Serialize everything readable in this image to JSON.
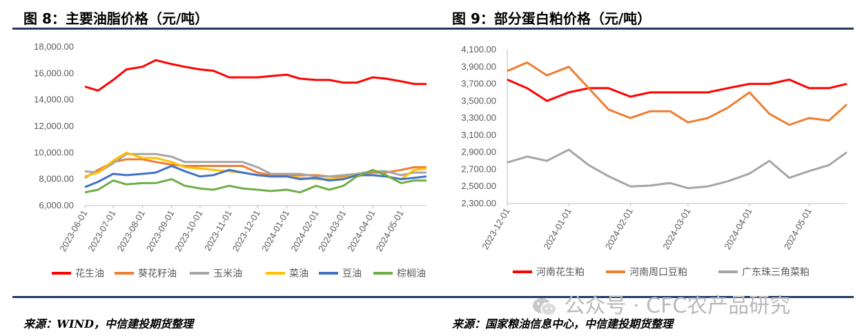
{
  "left": {
    "title": "图 8：主要油脂价格（元/吨）",
    "source": "来源：WIND，中信建投期货整理"
  },
  "right": {
    "title": "图 9：部分蛋白粕价格（元/吨）",
    "source": "来源：国家粮油信息中心，中信建投期货整理"
  },
  "watermark": "公众号 · CFC农产品研究",
  "chart_data": [
    {
      "type": "line",
      "title": "图 8：主要油脂价格（元/吨）",
      "x": [
        "2023-06-01",
        "2023-06-15",
        "2023-07-01",
        "2023-07-15",
        "2023-08-01",
        "2023-08-15",
        "2023-09-01",
        "2023-09-15",
        "2023-10-01",
        "2023-10-15",
        "2023-11-01",
        "2023-11-15",
        "2023-12-01",
        "2023-12-15",
        "2024-01-01",
        "2024-01-15",
        "2024-02-01",
        "2024-02-15",
        "2024-03-01",
        "2024-03-15",
        "2024-04-01",
        "2024-04-15",
        "2024-05-01",
        "2024-05-15",
        "2024-05-28"
      ],
      "x_ticks": [
        "2023-06-01",
        "2023-07-01",
        "2023-08-01",
        "2023-09-01",
        "2023-10-01",
        "2023-11-01",
        "2023-12-01",
        "2024-01-01",
        "2024-02-01",
        "2024-03-01",
        "2024-04-01",
        "2024-05-01"
      ],
      "y_ticks": [
        "6,000.00",
        "8,000.00",
        "10,000.00",
        "12,000.00",
        "14,000.00",
        "16,000.00",
        "18,000.00"
      ],
      "ylim": [
        6000,
        18000
      ],
      "grid": false,
      "legend_position": "bottom",
      "series": [
        {
          "name": "花生油",
          "color": "#ff0000",
          "values": [
            15000,
            14700,
            15500,
            16300,
            16500,
            17000,
            16700,
            16500,
            16300,
            16200,
            15700,
            15700,
            15700,
            15800,
            15900,
            15600,
            15500,
            15500,
            15300,
            15300,
            15700,
            15600,
            15400,
            15200,
            15200
          ]
        },
        {
          "name": "葵花籽油",
          "color": "#ed7d31",
          "values": [
            8100,
            8700,
            9300,
            9500,
            9500,
            9300,
            9100,
            9000,
            9000,
            9000,
            9000,
            9000,
            8500,
            8300,
            8300,
            8300,
            8300,
            8200,
            8200,
            8200,
            8500,
            8500,
            8700,
            8900,
            8900
          ]
        },
        {
          "name": "玉米油",
          "color": "#a5a5a5",
          "values": [
            8600,
            8500,
            9200,
            9900,
            9900,
            9900,
            9700,
            9300,
            9300,
            9300,
            9300,
            9300,
            8900,
            8400,
            8400,
            8400,
            8200,
            8200,
            8300,
            8400,
            8600,
            8600,
            8300,
            8500,
            8500
          ]
        },
        {
          "name": "菜油",
          "color": "#ffc000",
          "values": [
            8200,
            8500,
            9400,
            10000,
            9600,
            9600,
            9300,
            8900,
            8800,
            8700,
            8600,
            8500,
            8300,
            8200,
            8200,
            8100,
            8000,
            8000,
            8100,
            8300,
            8300,
            8200,
            8000,
            8700,
            8800
          ]
        },
        {
          "name": "豆油",
          "color": "#4472c4",
          "values": [
            7400,
            7800,
            8400,
            8300,
            8400,
            8500,
            9000,
            8600,
            8200,
            8300,
            8700,
            8500,
            8300,
            8200,
            8200,
            8000,
            8100,
            7900,
            8000,
            8300,
            8300,
            8200,
            8000,
            8100,
            8200
          ]
        },
        {
          "name": "棕榈油",
          "color": "#70ad47",
          "values": [
            7000,
            7200,
            7900,
            7600,
            7700,
            7700,
            8000,
            7500,
            7300,
            7200,
            7500,
            7300,
            7200,
            7100,
            7200,
            7000,
            7500,
            7200,
            7500,
            8200,
            8700,
            8300,
            7700,
            7900,
            7900
          ]
        }
      ]
    },
    {
      "type": "line",
      "title": "图 9：部分蛋白粕价格（元/吨）",
      "x": [
        "2023-12-01",
        "2023-12-11",
        "2023-12-21",
        "2024-01-01",
        "2024-01-11",
        "2024-01-21",
        "2024-02-01",
        "2024-02-11",
        "2024-02-21",
        "2024-03-01",
        "2024-03-11",
        "2024-03-21",
        "2024-04-01",
        "2024-04-11",
        "2024-04-21",
        "2024-05-01",
        "2024-05-11",
        "2024-05-20"
      ],
      "x_ticks": [
        "2023-12-01",
        "2024-01-01",
        "2024-02-01",
        "2024-03-01",
        "2024-04-01",
        "2024-05-01"
      ],
      "y_ticks": [
        "2,300.00",
        "2,500.00",
        "2,700.00",
        "2,900.00",
        "3,100.00",
        "3,300.00",
        "3,500.00",
        "3,700.00",
        "3,900.00",
        "4,100.00"
      ],
      "ylim": [
        2300,
        4100
      ],
      "grid": false,
      "legend_position": "bottom",
      "series": [
        {
          "name": "河南花生粕",
          "color": "#ff0000",
          "values": [
            3750,
            3650,
            3500,
            3600,
            3650,
            3650,
            3550,
            3600,
            3600,
            3600,
            3600,
            3650,
            3700,
            3700,
            3750,
            3650,
            3650,
            3700
          ]
        },
        {
          "name": "河南周口豆粕",
          "color": "#ed7d31",
          "values": [
            3850,
            3950,
            3800,
            3900,
            3650,
            3400,
            3300,
            3380,
            3380,
            3250,
            3300,
            3420,
            3600,
            3350,
            3220,
            3300,
            3270,
            3460
          ]
        },
        {
          "name": "广东珠三角菜粕",
          "color": "#a5a5a5",
          "values": [
            2780,
            2850,
            2800,
            2930,
            2750,
            2620,
            2500,
            2510,
            2540,
            2480,
            2500,
            2560,
            2650,
            2800,
            2600,
            2680,
            2750,
            2900
          ]
        }
      ]
    }
  ]
}
